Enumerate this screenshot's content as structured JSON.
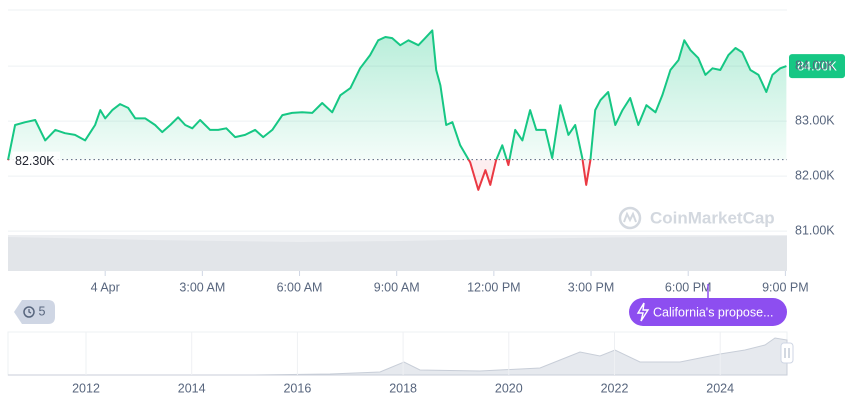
{
  "chart_data": {
    "type": "line",
    "x": [
      -3.0,
      -2.78,
      -2.47,
      -2.16,
      -1.85,
      -1.54,
      -1.24,
      -0.93,
      -0.62,
      -0.31,
      -0.15,
      0,
      0.22,
      0.46,
      0.71,
      0.93,
      1.24,
      1.54,
      1.76,
      2.01,
      2.25,
      2.47,
      2.69,
      2.93,
      3.24,
      3.49,
      3.74,
      4.01,
      4.32,
      4.63,
      4.88,
      5.16,
      5.47,
      5.77,
      6.08,
      6.39,
      6.7,
      7.01,
      7.26,
      7.57,
      7.87,
      8.18,
      8.43,
      8.65,
      8.86,
      9.11,
      9.36,
      9.67,
      9.88,
      10.1,
      10.22,
      10.35,
      10.53,
      10.72,
      10.96,
      11.27,
      11.52,
      11.74,
      11.89,
      12.07,
      12.26,
      12.45,
      12.66,
      12.88,
      13.12,
      13.31,
      13.59,
      13.8,
      14.05,
      14.3,
      14.51,
      14.73,
      14.85,
      14.98,
      15.13,
      15.29,
      15.53,
      15.75,
      15.97,
      16.21,
      16.46,
      16.71,
      16.99,
      17.2,
      17.45,
      17.7,
      17.88,
      18.07,
      18.31,
      18.53,
      18.75,
      18.99,
      19.24,
      19.46,
      19.67,
      19.92,
      20.17,
      20.41,
      20.6,
      20.84,
      21.03
    ],
    "values": [
      82290,
      82930,
      82980,
      83020,
      82650,
      82840,
      82780,
      82750,
      82650,
      82930,
      83200,
      83050,
      83200,
      83310,
      83240,
      83050,
      83050,
      82930,
      82800,
      82930,
      83070,
      82930,
      82870,
      83020,
      82840,
      82840,
      82870,
      82710,
      82750,
      82840,
      82710,
      82840,
      83110,
      83150,
      83160,
      83150,
      83330,
      83160,
      83470,
      83600,
      83960,
      84200,
      84470,
      84530,
      84510,
      84380,
      84470,
      84380,
      84510,
      84650,
      83930,
      83650,
      82930,
      82980,
      82560,
      82250,
      81750,
      82110,
      81840,
      82290,
      82560,
      82200,
      82840,
      82650,
      83200,
      82840,
      82840,
      82330,
      83290,
      82750,
      82930,
      82330,
      81840,
      82290,
      83200,
      83380,
      83530,
      82930,
      83200,
      83420,
      82930,
      83290,
      83160,
      83470,
      83930,
      84110,
      84470,
      84290,
      84150,
      83840,
      83960,
      83930,
      84200,
      84330,
      84250,
      83930,
      83840,
      83530,
      83840,
      83960,
      84000
    ],
    "xlim": [
      -3,
      21.05
    ],
    "xticks": [
      {
        "value": 0,
        "label": "4 Apr"
      },
      {
        "value": 3,
        "label": "3:00 AM"
      },
      {
        "value": 6,
        "label": "6:00 AM"
      },
      {
        "value": 9,
        "label": "9:00 AM"
      },
      {
        "value": 12,
        "label": "12:00 PM"
      },
      {
        "value": 15,
        "label": "3:00 PM"
      },
      {
        "value": 18,
        "label": "6:00 PM"
      },
      {
        "value": 21,
        "label": "9:00 PM"
      }
    ],
    "ylim": [
      80930,
      85020
    ],
    "yticks": [
      {
        "value": 81000,
        "label": "81.00K"
      },
      {
        "value": 82000,
        "label": "82.00K"
      },
      {
        "value": 83000,
        "label": "83.00K"
      },
      {
        "value": 84000,
        "label": "84.00K"
      }
    ],
    "baseline": 82300,
    "baseline_label": "82.30K",
    "current_price_label": "84.00K",
    "color_above": "#16c784",
    "color_below": "#ea3943",
    "grid": true
  },
  "watermark": "CoinMarketCap",
  "event_count": 5,
  "news_pill": "California's propose...",
  "navigator": {
    "labels": [
      "2012",
      "2014",
      "2016",
      "2018",
      "2020",
      "2022",
      "2024"
    ]
  }
}
